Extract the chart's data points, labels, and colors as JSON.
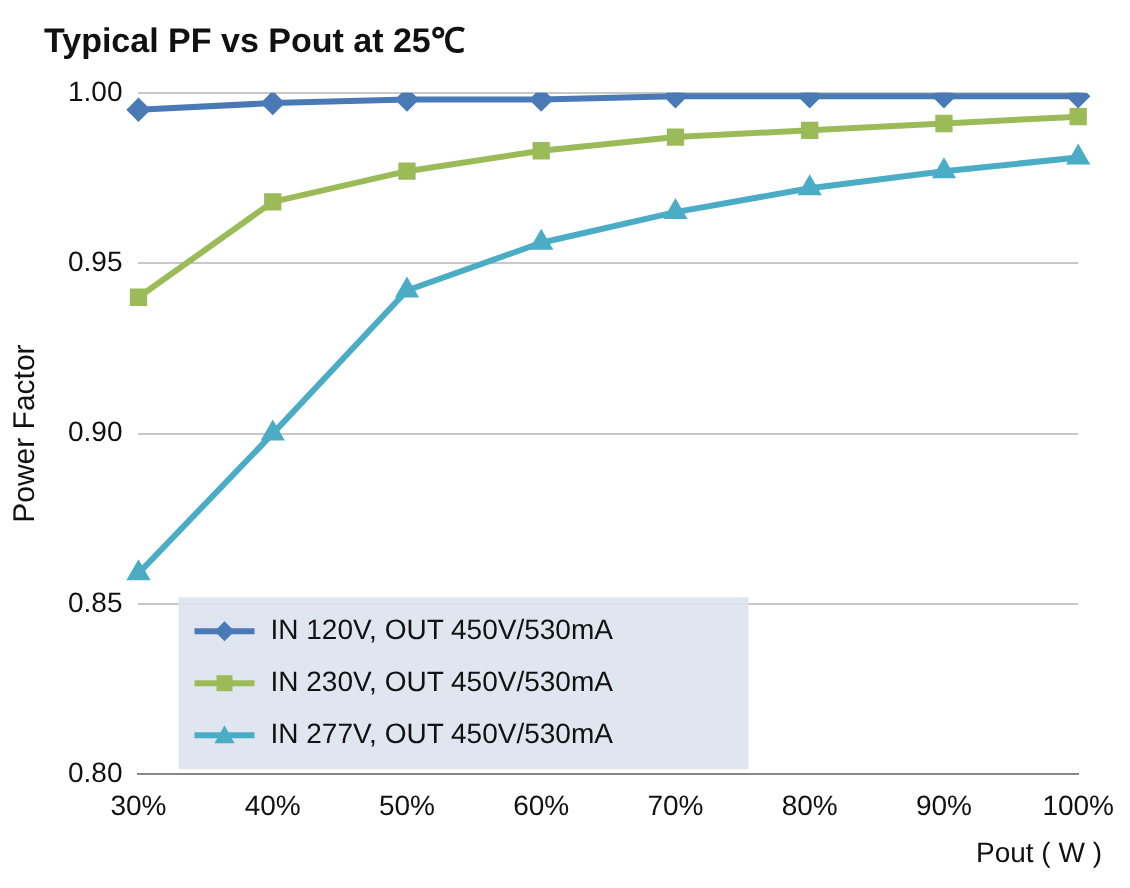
{
  "chart_data": {
    "type": "line",
    "title": "Typical PF vs Pout at 25℃",
    "xlabel": "Pout ( W )",
    "ylabel": "Power Factor",
    "categories": [
      "30%",
      "40%",
      "50%",
      "60%",
      "70%",
      "80%",
      "90%",
      "100%"
    ],
    "series": [
      {
        "name": "IN 120V, OUT 450V/530mA",
        "color": "#4a7ab5",
        "marker": "diamond",
        "values": [
          0.995,
          0.997,
          0.998,
          0.998,
          0.999,
          0.999,
          0.999,
          0.999
        ]
      },
      {
        "name": "IN 230V, OUT 450V/530mA",
        "color": "#9bbb59",
        "marker": "square",
        "values": [
          0.94,
          0.968,
          0.977,
          0.983,
          0.987,
          0.989,
          0.991,
          0.993
        ]
      },
      {
        "name": "IN 277V, OUT 450V/530mA",
        "color": "#4bacc6",
        "marker": "triangle",
        "values": [
          0.859,
          0.9,
          0.942,
          0.956,
          0.965,
          0.972,
          0.977,
          0.981
        ]
      }
    ],
    "ylim": [
      0.8,
      1.0
    ],
    "yticks": [
      {
        "value": 0.8,
        "label": "0.80"
      },
      {
        "value": 0.85,
        "label": "0.85"
      },
      {
        "value": 0.9,
        "label": "0.90"
      },
      {
        "value": 0.95,
        "label": "0.95"
      },
      {
        "value": 1.0,
        "label": "1.00"
      }
    ],
    "grid": "y",
    "legend": "left",
    "line_style": "solid"
  }
}
